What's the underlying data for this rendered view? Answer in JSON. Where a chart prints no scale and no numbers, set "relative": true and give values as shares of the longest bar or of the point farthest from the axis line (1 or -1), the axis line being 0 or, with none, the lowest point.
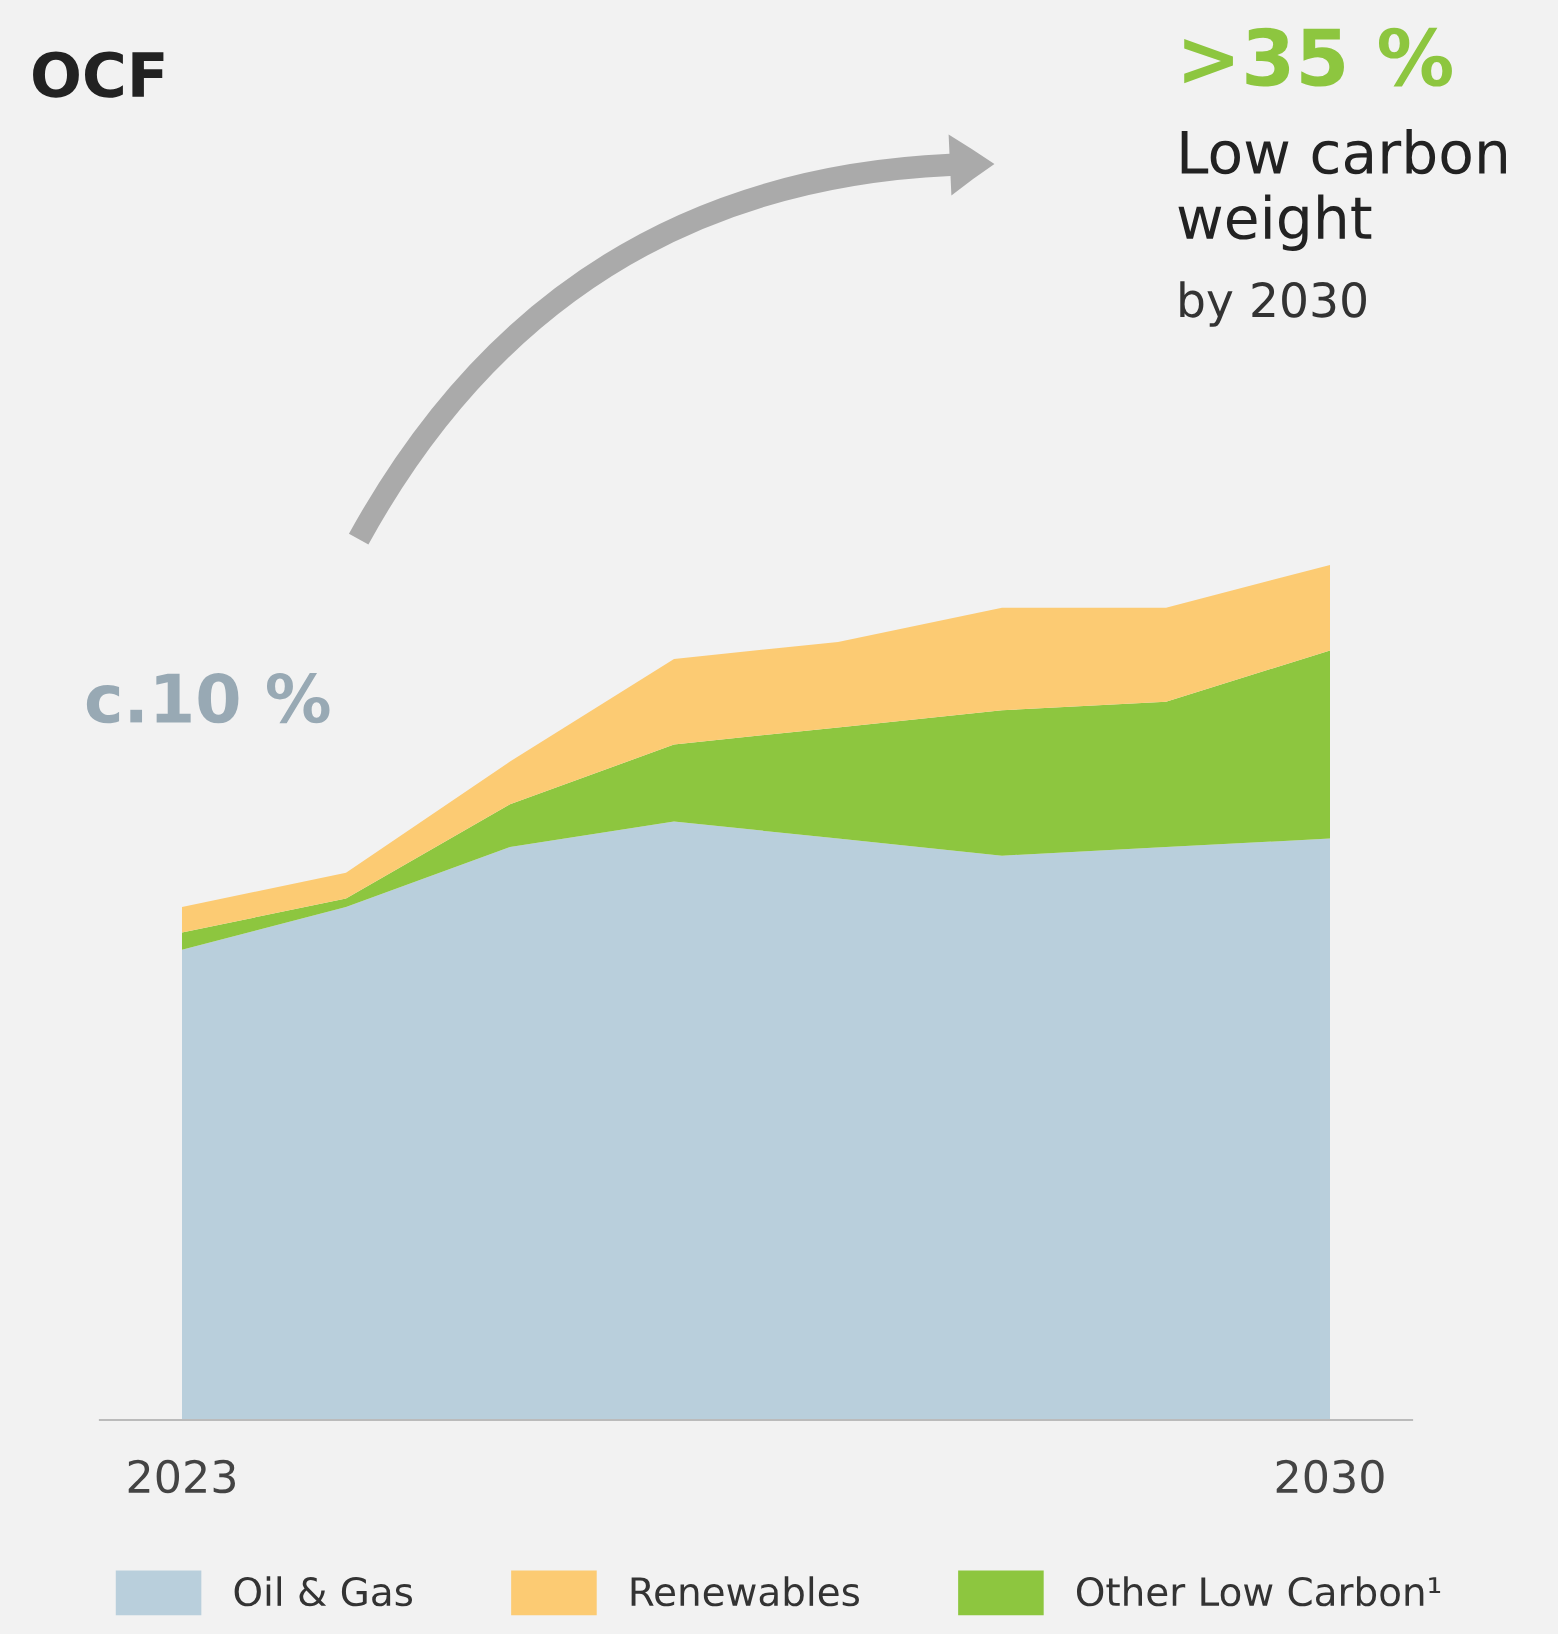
{
  "chart_data": {
    "type": "area",
    "title": "OCF",
    "stacked": true,
    "relative": true,
    "categories": [
      "2023",
      null,
      null,
      null,
      null,
      null,
      null,
      "2030"
    ],
    "series": [
      {
        "name": "Oil & Gas",
        "color": "#b9cfdc",
        "values": [
          0.55,
          0.6,
          0.67,
          0.7,
          0.68,
          0.66,
          0.67,
          0.68
        ]
      },
      {
        "name": "Other Low Carbon¹",
        "color": "#8dc63f",
        "values": [
          0.02,
          0.01,
          0.05,
          0.09,
          0.13,
          0.17,
          0.17,
          0.22
        ]
      },
      {
        "name": "Renewables",
        "color": "#fccb73",
        "values": [
          0.03,
          0.03,
          0.05,
          0.1,
          0.1,
          0.12,
          0.11,
          0.1
        ]
      }
    ],
    "annotations": [
      "c.10 %",
      ">35 %",
      "Low carbon weight",
      "by 2030"
    ],
    "legend": "bottom",
    "grid": false
  }
}
